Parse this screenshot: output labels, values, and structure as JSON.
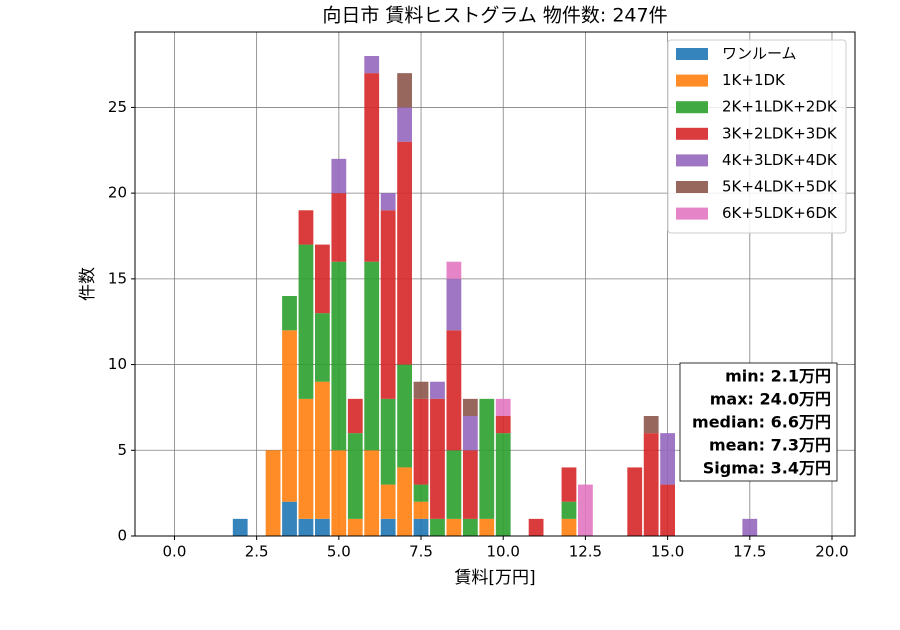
{
  "chart_data": {
    "type": "histogram",
    "title": "向日市 賃料ヒストグラム  物件数: 247件",
    "xlabel": "賃料[万円]",
    "ylabel": "件数",
    "bins": [
      1.75,
      2.25,
      2.75,
      3.25,
      3.75,
      4.25,
      4.75,
      5.25,
      5.75,
      6.25,
      6.75,
      7.25,
      7.75,
      8.25,
      8.75,
      9.25,
      9.75,
      10.25,
      10.75,
      11.25,
      11.75,
      12.25,
      12.75,
      13.25,
      13.75,
      14.25,
      14.75,
      15.25,
      15.75,
      16.25,
      16.75,
      17.25,
      17.75
    ],
    "series": [
      {
        "name": "ワンルーム",
        "color": "#1f77b4",
        "values": [
          1,
          0,
          0,
          2,
          1,
          1,
          0,
          0,
          0,
          1,
          0,
          1,
          0,
          0,
          0,
          0,
          0,
          0,
          0,
          0,
          0,
          0,
          0,
          0,
          0,
          0,
          0,
          0,
          0,
          0,
          0,
          0
        ]
      },
      {
        "name": "1K+1DK",
        "color": "#ff7f0e",
        "values": [
          0,
          0,
          5,
          10,
          7,
          8,
          5,
          1,
          5,
          2,
          4,
          1,
          0,
          1,
          0,
          1,
          0,
          0,
          0,
          0,
          1,
          0,
          0,
          0,
          0,
          0,
          0,
          0,
          0,
          0,
          0,
          0
        ]
      },
      {
        "name": "2K+1LDK+2DK",
        "color": "#2ca02c",
        "values": [
          0,
          0,
          0,
          2,
          9,
          4,
          11,
          5,
          11,
          5,
          6,
          1,
          1,
          4,
          1,
          7,
          6,
          0,
          0,
          0,
          1,
          0,
          0,
          0,
          0,
          0,
          0,
          0,
          0,
          0,
          0,
          0
        ]
      },
      {
        "name": "3K+2LDK+3DK",
        "color": "#d62728",
        "values": [
          0,
          0,
          0,
          0,
          2,
          4,
          4,
          2,
          11,
          11,
          13,
          5,
          7,
          7,
          4,
          0,
          1,
          0,
          1,
          0,
          2,
          0,
          0,
          0,
          4,
          6,
          3,
          0,
          0,
          0,
          0,
          0
        ]
      },
      {
        "name": "4K+3LDK+4DK",
        "color": "#9467bd",
        "values": [
          0,
          0,
          0,
          0,
          0,
          0,
          2,
          0,
          1,
          1,
          2,
          0,
          1,
          3,
          2,
          0,
          0,
          0,
          0,
          0,
          0,
          0,
          0,
          0,
          0,
          0,
          3,
          0,
          0,
          0,
          0,
          1
        ]
      },
      {
        "name": "5K+4LDK+5DK",
        "color": "#8c564b",
        "values": [
          0,
          0,
          0,
          0,
          0,
          0,
          0,
          0,
          0,
          0,
          2,
          1,
          0,
          0,
          1,
          0,
          0,
          0,
          0,
          0,
          0,
          0,
          0,
          0,
          0,
          1,
          0,
          0,
          0,
          0,
          0,
          0
        ]
      },
      {
        "name": "6K+5LDK+6DK",
        "color": "#e377c2",
        "values": [
          0,
          0,
          0,
          0,
          0,
          0,
          0,
          0,
          0,
          0,
          0,
          0,
          0,
          1,
          0,
          0,
          1,
          0,
          0,
          0,
          0,
          3,
          0,
          0,
          0,
          0,
          0,
          0,
          0,
          0,
          0,
          0
        ]
      }
    ],
    "xlim": [
      -1.2,
      20.7
    ],
    "ylim": [
      0,
      29.4
    ],
    "xticks": [
      {
        "value": 0,
        "label": "0.0"
      },
      {
        "value": 2.5,
        "label": "2.5"
      },
      {
        "value": 5,
        "label": "5.0"
      },
      {
        "value": 7.5,
        "label": "7.5"
      },
      {
        "value": 10,
        "label": "10.0"
      },
      {
        "value": 12.5,
        "label": "12.5"
      },
      {
        "value": 15,
        "label": "15.0"
      },
      {
        "value": 17.5,
        "label": "17.5"
      },
      {
        "value": 20,
        "label": "20.0"
      }
    ],
    "yticks": [
      0,
      5,
      10,
      15,
      20,
      25
    ],
    "grid": true,
    "legend": "upper right",
    "annotations": [
      "min: 2.1万円",
      "max: 24.0万円",
      "median: 6.6万円",
      "mean: 7.3万円",
      "Sigma: 3.4万円"
    ]
  }
}
